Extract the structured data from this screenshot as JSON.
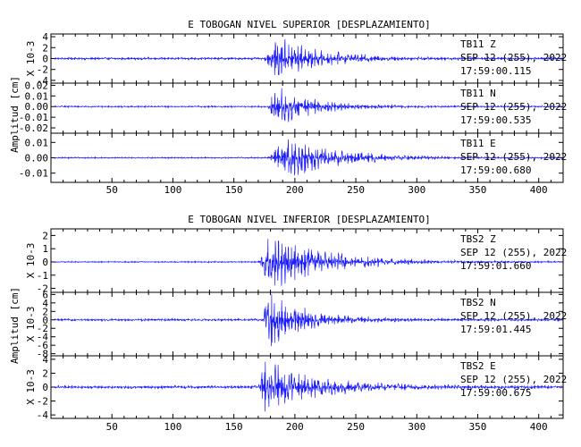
{
  "chart_data": [
    {
      "type": "line",
      "title": "E TOBOGAN NIVEL SUPERIOR [DESPLAZAMIENTO]",
      "ylabel": "Amplitud [cm]",
      "xticks": [
        "50",
        "100",
        "150",
        "200",
        "250",
        "300",
        "350",
        "400"
      ],
      "xlim": [
        0,
        420
      ],
      "panels": [
        {
          "station": "TB11",
          "component": "Z",
          "date": "SEP 12 (255), 2022",
          "time": "17:59:00.115",
          "multiplier": "X 10-3",
          "ylim": [
            -4.5,
            4.5
          ],
          "yticks": [
            -4,
            -2,
            0,
            2,
            4
          ],
          "ytick_labels": [
            "-4",
            "-2",
            "0",
            "2",
            "4"
          ],
          "onset": 175,
          "peak_time": 185,
          "peak": 4.3,
          "noise": 0.25,
          "decay": 35
        },
        {
          "station": "TB11",
          "component": "N",
          "date": "SEP 12 (255), 2022",
          "time": "17:59:00.535",
          "multiplier": "",
          "ylim": [
            -0.025,
            0.022
          ],
          "yticks": [
            -0.02,
            -0.01,
            0.0,
            0.01,
            0.02
          ],
          "ytick_labels": [
            "-0.02",
            "-0.01",
            "0.00",
            "0.01",
            "0.02"
          ],
          "onset": 178,
          "peak_time": 184,
          "peak": 0.02,
          "noise": 0.0008,
          "decay": 30
        },
        {
          "station": "TB11",
          "component": "E",
          "date": "SEP 12 (255), 2022",
          "time": "17:59:00.680",
          "multiplier": "",
          "ylim": [
            -0.016,
            0.016
          ],
          "yticks": [
            -0.01,
            0.0,
            0.01
          ],
          "ytick_labels": [
            "-0.01",
            "0.00",
            "0.01"
          ],
          "onset": 178,
          "peak_time": 195,
          "peak": 0.015,
          "noise": 0.0005,
          "decay": 40
        }
      ]
    },
    {
      "type": "line",
      "title": "E TOBOGAN NIVEL INFERIOR [DESPLAZAMIENTO]",
      "ylabel": "Amplitud [cm]",
      "xticks": [
        "50",
        "100",
        "150",
        "200",
        "250",
        "300",
        "350",
        "400"
      ],
      "xlim": [
        0,
        420
      ],
      "panels": [
        {
          "station": "TBS2",
          "component": "Z",
          "date": "SEP 12 (255), 2022",
          "time": "17:59:01.660",
          "multiplier": "X 10-3",
          "ylim": [
            -2.3,
            2.5
          ],
          "yticks": [
            -2,
            -1,
            0,
            1,
            2
          ],
          "ytick_labels": [
            "-2",
            "-1",
            "0",
            "1",
            "2"
          ],
          "onset": 170,
          "peak_time": 180,
          "peak": 2.3,
          "noise": 0.05,
          "decay": 45
        },
        {
          "station": "TBS2",
          "component": "N",
          "date": "SEP 12 (255), 2022",
          "time": "17:59:01.445",
          "multiplier": "X 10-3",
          "ylim": [
            -8.5,
            6.5
          ],
          "yticks": [
            -8,
            -6,
            -4,
            -2,
            0,
            2,
            4,
            6
          ],
          "ytick_labels": [
            "-8",
            "-6",
            "-4",
            "-2",
            "0",
            "2",
            "4",
            "6"
          ],
          "onset": 174,
          "peak_time": 177,
          "peak": 7.5,
          "noise": 0.3,
          "decay": 30
        },
        {
          "station": "TBS2",
          "component": "E",
          "date": "SEP 12 (255), 2022",
          "time": "17:59:00.675",
          "multiplier": "X 10-3",
          "ylim": [
            -4.5,
            4.5
          ],
          "yticks": [
            -4,
            -2,
            0,
            2,
            4
          ],
          "ytick_labels": [
            "-4",
            "-2",
            "0",
            "2",
            "4"
          ],
          "onset": 170,
          "peak_time": 176,
          "peak": 4.2,
          "noise": 0.25,
          "decay": 40
        }
      ]
    }
  ]
}
